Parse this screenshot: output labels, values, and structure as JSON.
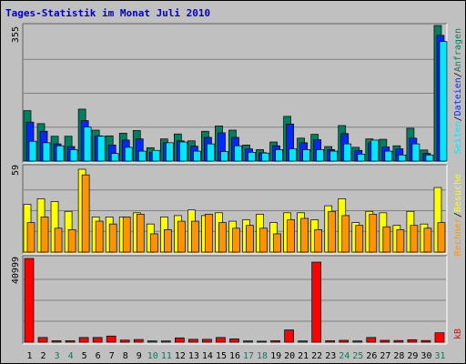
{
  "title": "Tages-Statistik im Monat Juli 2010",
  "colors": {
    "anfragen": "#00805F",
    "dateien": "#0028FF",
    "seiten": "#00E8FF",
    "besuche": "#FFFF00",
    "rechner": "#FF9400",
    "kb": "#FF0000",
    "weekday_label": "#000000",
    "weekend_label": "#00805F"
  },
  "chart_data": [
    {
      "type": "bar",
      "panel": "top",
      "ymax_label": "355",
      "ylim": [
        0,
        355
      ],
      "right_labels": [
        "Anfragen",
        "/",
        "Dateien",
        "/",
        "Seiten"
      ],
      "categories": [
        "1",
        "2",
        "3",
        "4",
        "5",
        "6",
        "7",
        "8",
        "9",
        "10",
        "11",
        "12",
        "13",
        "14",
        "15",
        "16",
        "17",
        "18",
        "19",
        "20",
        "21",
        "22",
        "23",
        "24",
        "25",
        "26",
        "27",
        "28",
        "29",
        "30",
        "31"
      ],
      "series": [
        {
          "name": "Anfragen",
          "values": [
            132,
            98,
            65,
            65,
            136,
            81,
            66,
            73,
            80,
            35,
            58,
            71,
            53,
            78,
            92,
            81,
            42,
            30,
            50,
            117,
            60,
            70,
            38,
            93,
            36,
            58,
            57,
            40,
            86,
            29,
            355
          ]
        },
        {
          "name": "Dateien",
          "values": [
            102,
            78,
            45,
            38,
            106,
            66,
            42,
            55,
            58,
            23,
            48,
            53,
            39,
            62,
            74,
            62,
            32,
            22,
            40,
            97,
            48,
            56,
            30,
            72,
            28,
            48,
            37,
            32,
            60,
            20,
            329
          ]
        },
        {
          "name": "Seiten",
          "values": [
            52,
            48,
            40,
            30,
            89,
            65,
            20,
            36,
            26,
            28,
            48,
            50,
            26,
            45,
            25,
            40,
            23,
            21,
            30,
            32,
            30,
            30,
            26,
            45,
            18,
            55,
            26,
            16,
            45,
            16,
            313
          ]
        }
      ]
    },
    {
      "type": "bar",
      "panel": "middle",
      "ymax_label": "59",
      "ylim": [
        0,
        59
      ],
      "right_labels": [
        "Besuche",
        "/",
        "Rechner"
      ],
      "categories": [
        "1",
        "2",
        "3",
        "4",
        "5",
        "6",
        "7",
        "8",
        "9",
        "10",
        "11",
        "12",
        "13",
        "14",
        "15",
        "16",
        "17",
        "18",
        "19",
        "20",
        "21",
        "22",
        "23",
        "24",
        "25",
        "26",
        "27",
        "28",
        "29",
        "30",
        "31"
      ],
      "series": [
        {
          "name": "Besuche",
          "values": [
            34,
            38,
            36,
            29,
            59,
            25,
            25,
            25,
            28,
            20,
            25,
            26,
            30,
            26,
            28,
            22,
            23,
            27,
            21,
            28,
            28,
            23,
            33,
            38,
            21,
            29,
            28,
            19,
            29,
            20,
            46
          ]
        },
        {
          "name": "Rechner",
          "values": [
            21,
            25,
            17,
            16,
            55,
            22,
            20,
            25,
            27,
            13,
            16,
            22,
            22,
            27,
            21,
            17,
            19,
            17,
            13,
            23,
            24,
            16,
            29,
            26,
            19,
            27,
            18,
            16,
            19,
            17,
            21
          ]
        }
      ]
    },
    {
      "type": "bar",
      "panel": "bottom",
      "ymax_label": "40999",
      "ylim": [
        0,
        40999
      ],
      "right_labels": [
        "kB"
      ],
      "categories": [
        "1",
        "2",
        "3",
        "4",
        "5",
        "6",
        "7",
        "8",
        "9",
        "10",
        "11",
        "12",
        "13",
        "14",
        "15",
        "16",
        "17",
        "18",
        "19",
        "20",
        "21",
        "22",
        "23",
        "24",
        "25",
        "26",
        "27",
        "28",
        "29",
        "30",
        "31"
      ],
      "series": [
        {
          "name": "kB",
          "values": [
            40999,
            2300,
            700,
            700,
            2300,
            2300,
            3000,
            1000,
            1300,
            600,
            600,
            2100,
            1400,
            1400,
            2300,
            1600,
            600,
            500,
            700,
            6000,
            600,
            39200,
            700,
            900,
            600,
            2300,
            900,
            800,
            1200,
            800,
            4600
          ]
        }
      ]
    }
  ]
}
